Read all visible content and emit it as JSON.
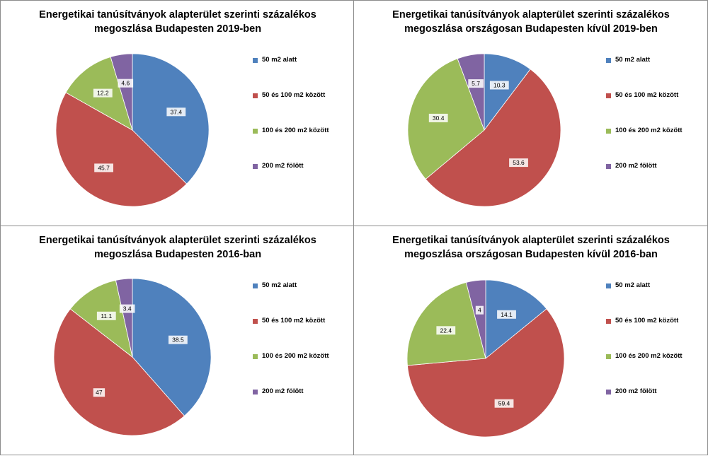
{
  "colors": {
    "c0": "#4f81bd",
    "c1": "#c0504d",
    "c2": "#9bbb59",
    "c3": "#8064a2"
  },
  "chart_data": [
    {
      "type": "pie",
      "title_lines": [
        "Energetikai tanúsítványok alapterület szerinti százalékos",
        "megoszlása Budapesten 2019-ben"
      ],
      "categories": [
        "50 m2 alatt",
        "50 és 100 m2 között",
        "100 és 200 m2 között",
        "200 m2 fölött"
      ],
      "values": [
        37.4,
        45.7,
        12.2,
        4.6
      ],
      "labels": [
        "37.4",
        "45.7",
        "12.2",
        "4.6"
      ],
      "legend_position": "right"
    },
    {
      "type": "pie",
      "title_lines": [
        "Energetikai tanúsítványok alapterület szerinti százalékos",
        "megoszlása országosan Budapesten kívül 2019-ben"
      ],
      "categories": [
        "50 m2 alatt",
        "50 és 100 m2 között",
        "100 és 200 m2 között",
        "200 m2 fölött"
      ],
      "values": [
        10.3,
        53.6,
        30.4,
        5.7
      ],
      "labels": [
        "10.3",
        "53.6",
        "30.4",
        "5.7"
      ],
      "legend_position": "right"
    },
    {
      "type": "pie",
      "title_lines": [
        "Energetikai tanúsítványok alapterület szerinti százalékos",
        "megoszlása Budapesten 2016-ban"
      ],
      "categories": [
        "50 m2 alatt",
        "50 és 100 m2 között",
        "100 és 200 m2 között",
        "200 m2 fölött"
      ],
      "values": [
        38.5,
        47,
        11.1,
        3.4
      ],
      "labels": [
        "38.5",
        "47",
        "11.1",
        "3.4"
      ],
      "legend_position": "right"
    },
    {
      "type": "pie",
      "title_lines": [
        "Energetikai tanúsítványok alapterület szerinti százalékos",
        "megoszlása országosan Budapesten kívül 2016-ban"
      ],
      "categories": [
        "50 m2 alatt",
        "50 és 100 m2 között",
        "100 és 200 m2 között",
        "200 m2 fölött"
      ],
      "values": [
        14.1,
        59.4,
        22.4,
        4
      ],
      "labels": [
        "14.1",
        "59.4",
        "22.4",
        "4"
      ],
      "legend_position": "right"
    }
  ]
}
